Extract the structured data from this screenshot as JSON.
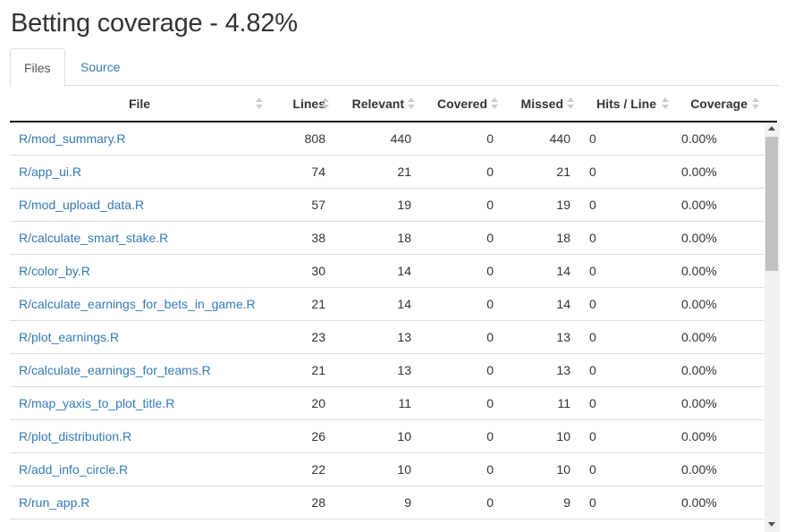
{
  "page": {
    "title": "Betting coverage - 4.82%"
  },
  "tabs": [
    {
      "label": "Files",
      "active": true
    },
    {
      "label": "Source",
      "active": false
    }
  ],
  "table": {
    "columns": [
      "File",
      "Lines",
      "Relevant",
      "Covered",
      "Missed",
      "Hits / Line",
      "Coverage"
    ],
    "rows": [
      {
        "file": "R/mod_summary.R",
        "lines": "808",
        "relevant": "440",
        "covered": "0",
        "missed": "440",
        "hits": "0",
        "coverage": "0.00%"
      },
      {
        "file": "R/app_ui.R",
        "lines": "74",
        "relevant": "21",
        "covered": "0",
        "missed": "21",
        "hits": "0",
        "coverage": "0.00%"
      },
      {
        "file": "R/mod_upload_data.R",
        "lines": "57",
        "relevant": "19",
        "covered": "0",
        "missed": "19",
        "hits": "0",
        "coverage": "0.00%"
      },
      {
        "file": "R/calculate_smart_stake.R",
        "lines": "38",
        "relevant": "18",
        "covered": "0",
        "missed": "18",
        "hits": "0",
        "coverage": "0.00%"
      },
      {
        "file": "R/color_by.R",
        "lines": "30",
        "relevant": "14",
        "covered": "0",
        "missed": "14",
        "hits": "0",
        "coverage": "0.00%"
      },
      {
        "file": "R/calculate_earnings_for_bets_in_game.R",
        "lines": "21",
        "relevant": "14",
        "covered": "0",
        "missed": "14",
        "hits": "0",
        "coverage": "0.00%"
      },
      {
        "file": "R/plot_earnings.R",
        "lines": "23",
        "relevant": "13",
        "covered": "0",
        "missed": "13",
        "hits": "0",
        "coverage": "0.00%"
      },
      {
        "file": "R/calculate_earnings_for_teams.R",
        "lines": "21",
        "relevant": "13",
        "covered": "0",
        "missed": "13",
        "hits": "0",
        "coverage": "0.00%"
      },
      {
        "file": "R/map_yaxis_to_plot_title.R",
        "lines": "20",
        "relevant": "11",
        "covered": "0",
        "missed": "11",
        "hits": "0",
        "coverage": "0.00%"
      },
      {
        "file": "R/plot_distribution.R",
        "lines": "26",
        "relevant": "10",
        "covered": "0",
        "missed": "10",
        "hits": "0",
        "coverage": "0.00%"
      },
      {
        "file": "R/add_info_circle.R",
        "lines": "22",
        "relevant": "10",
        "covered": "0",
        "missed": "10",
        "hits": "0",
        "coverage": "0.00%"
      },
      {
        "file": "R/run_app.R",
        "lines": "28",
        "relevant": "9",
        "covered": "0",
        "missed": "9",
        "hits": "0",
        "coverage": "0.00%"
      }
    ]
  },
  "colors": {
    "link": "#337ab7",
    "text": "#333333",
    "border": "#dddddd",
    "header_rule": "#111111"
  }
}
